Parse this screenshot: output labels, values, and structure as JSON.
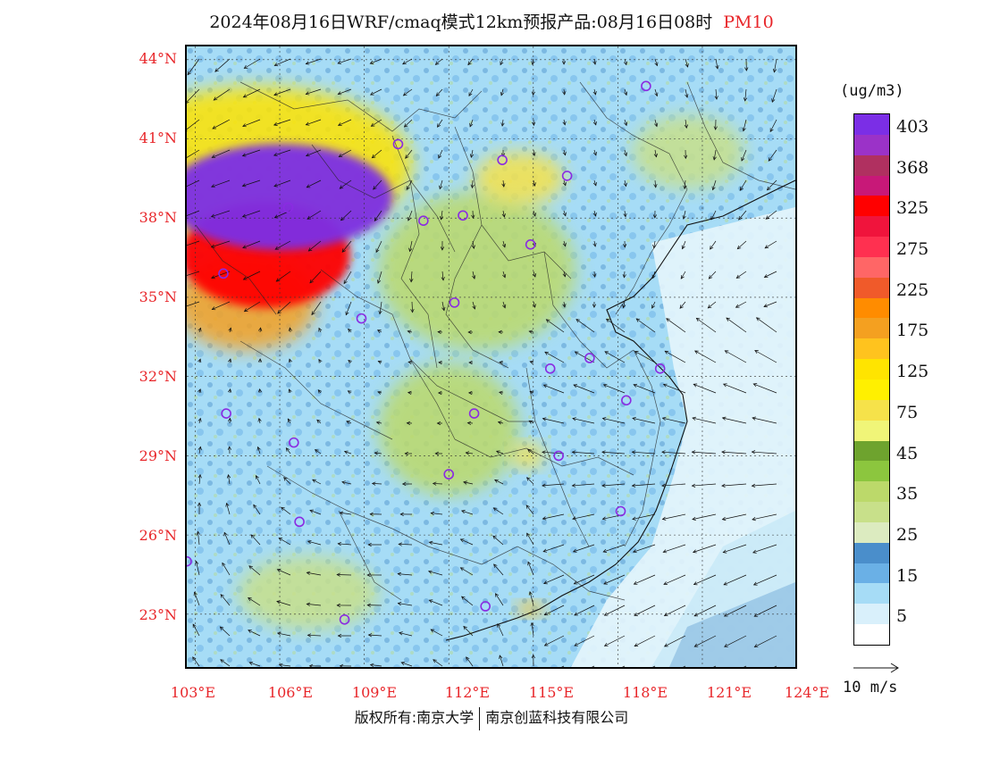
{
  "title": {
    "text": "2024年08月16日WRF/cmaq模式12km预报产品:08月16日08时",
    "species": "PM10"
  },
  "colors": {
    "title_species": "#e8262a",
    "axis_labels": "#e8262a",
    "city_marker": "#8a2be2"
  },
  "axes": {
    "lat_labels": [
      "44°N",
      "41°N",
      "38°N",
      "35°N",
      "32°N",
      "29°N",
      "26°N",
      "23°N"
    ],
    "lon_labels": [
      "103°E",
      "106°E",
      "109°E",
      "112°E",
      "115°E",
      "118°E",
      "121°E",
      "124°E"
    ],
    "lat_range": [
      21,
      44.5
    ],
    "lon_range": [
      102.7,
      124.3
    ]
  },
  "legend": {
    "unit": "(ug/m3)",
    "bins": [
      {
        "label": "403",
        "color": "#7b2ee6"
      },
      {
        "label": "",
        "color": "#9b32c8"
      },
      {
        "label": "368",
        "color": "#b03060"
      },
      {
        "label": "",
        "color": "#c81878"
      },
      {
        "label": "325",
        "color": "#ff0000"
      },
      {
        "label": "",
        "color": "#f0143c"
      },
      {
        "label": "275",
        "color": "#ff3050"
      },
      {
        "label": "",
        "color": "#ff6666"
      },
      {
        "label": "225",
        "color": "#f05a2a"
      },
      {
        "label": "",
        "color": "#ff8c00"
      },
      {
        "label": "175",
        "color": "#f4a020"
      },
      {
        "label": "",
        "color": "#ffc31e"
      },
      {
        "label": "125",
        "color": "#ffe400"
      },
      {
        "label": "",
        "color": "#fff000"
      },
      {
        "label": "75",
        "color": "#f6e24a"
      },
      {
        "label": "",
        "color": "#f0f578"
      },
      {
        "label": "45",
        "color": "#6ea32e"
      },
      {
        "label": "",
        "color": "#8cc63e"
      },
      {
        "label": "35",
        "color": "#bcd96a"
      },
      {
        "label": "",
        "color": "#c8e08a"
      },
      {
        "label": "25",
        "color": "#dcebc0"
      },
      {
        "label": "",
        "color": "#4a8ecb"
      },
      {
        "label": "15",
        "color": "#6ab0e6"
      },
      {
        "label": "",
        "color": "#a6dcf6"
      },
      {
        "label": "5",
        "color": "#d9f0fb"
      },
      {
        "label": "",
        "color": "#ffffff"
      }
    ]
  },
  "reference_vector": {
    "label": "10 m/s"
  },
  "footer": {
    "left": "版权所有:南京大学",
    "right": "南京创蓝科技有限公司"
  },
  "cities": [
    {
      "lon": 119.0,
      "lat": 43.0
    },
    {
      "lon": 110.2,
      "lat": 40.8
    },
    {
      "lon": 113.9,
      "lat": 40.2
    },
    {
      "lon": 116.2,
      "lat": 39.6
    },
    {
      "lon": 106.3,
      "lat": 38.4
    },
    {
      "lon": 111.1,
      "lat": 37.9
    },
    {
      "lon": 112.5,
      "lat": 38.1
    },
    {
      "lon": 114.9,
      "lat": 37.0
    },
    {
      "lon": 104.0,
      "lat": 35.9
    },
    {
      "lon": 108.9,
      "lat": 34.2
    },
    {
      "lon": 112.2,
      "lat": 34.8
    },
    {
      "lon": 117.0,
      "lat": 32.7
    },
    {
      "lon": 115.6,
      "lat": 32.3
    },
    {
      "lon": 119.5,
      "lat": 32.3
    },
    {
      "lon": 118.3,
      "lat": 31.1
    },
    {
      "lon": 104.1,
      "lat": 30.6
    },
    {
      "lon": 106.5,
      "lat": 29.5
    },
    {
      "lon": 112.9,
      "lat": 30.6
    },
    {
      "lon": 115.9,
      "lat": 29.0
    },
    {
      "lon": 112.0,
      "lat": 28.3
    },
    {
      "lon": 118.1,
      "lat": 26.9
    },
    {
      "lon": 106.7,
      "lat": 26.5
    },
    {
      "lon": 102.7,
      "lat": 25.0
    },
    {
      "lon": 108.3,
      "lat": 22.8
    },
    {
      "lon": 113.3,
      "lat": 23.3
    }
  ],
  "fields": [
    {
      "name": "inner-mongolia-ningxia-core",
      "level": 0,
      "lon": 106.0,
      "lat": 38.8,
      "rx": 4.0,
      "ry": 2.0
    },
    {
      "name": "loess-plume",
      "level": 4,
      "lon": 105.5,
      "lat": 36.6,
      "rx": 3.0,
      "ry": 2.0
    },
    {
      "name": "north-yellow-band",
      "level": 12,
      "lon": 105.2,
      "lat": 40.0,
      "rx": 5.5,
      "ry": 3.0
    },
    {
      "name": "gansu-orange",
      "level": 10,
      "lon": 104.8,
      "lat": 34.8,
      "rx": 2.5,
      "ry": 1.8
    },
    {
      "name": "north-china-green",
      "level": 18,
      "lon": 113.0,
      "lat": 36.0,
      "rx": 3.5,
      "ry": 3.0
    },
    {
      "name": "hebei-yellow",
      "level": 14,
      "lon": 114.5,
      "lat": 39.5,
      "rx": 1.6,
      "ry": 1.0
    },
    {
      "name": "hunan-hubei-green",
      "level": 18,
      "lon": 112.0,
      "lat": 30.0,
      "rx": 2.5,
      "ry": 2.5
    },
    {
      "name": "jiangxi-yellow",
      "level": 14,
      "lon": 114.8,
      "lat": 29.0,
      "rx": 0.6,
      "ry": 0.5
    },
    {
      "name": "guangxi-green",
      "level": 19,
      "lon": 107.0,
      "lat": 23.8,
      "rx": 2.5,
      "ry": 1.4
    },
    {
      "name": "northeast-green",
      "level": 19,
      "lon": 120.5,
      "lat": 40.5,
      "rx": 2.0,
      "ry": 1.4
    },
    {
      "name": "pearl-river-hotspot",
      "level": 11,
      "lon": 114.9,
      "lat": 23.2,
      "rx": 0.5,
      "ry": 0.3
    }
  ]
}
